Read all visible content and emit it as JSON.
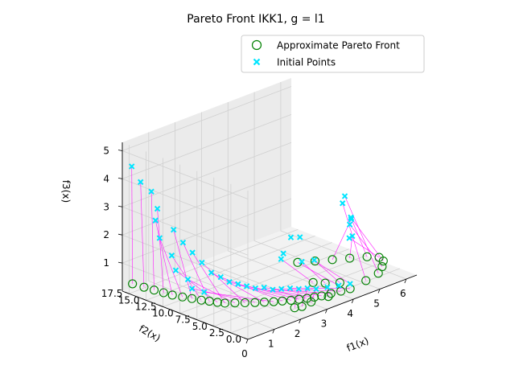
{
  "chart_data": {
    "type": "scatter3d",
    "title": "Pareto Front IKK1, g = l1",
    "xlabel": "f1(x)",
    "ylabel": "f2(x)",
    "zlabel": "f3(x)",
    "xlim": [
      0,
      6.4
    ],
    "ylim": [
      0,
      18.5
    ],
    "zlim": [
      0,
      5.3
    ],
    "xticks": [
      "0",
      "1",
      "2",
      "3",
      "4",
      "5",
      "6"
    ],
    "yticks": [
      "0.0",
      "2.5",
      "5.0",
      "7.5",
      "10.0",
      "12.5",
      "15.0",
      "17.5"
    ],
    "zticks": [
      "1",
      "2",
      "3",
      "4",
      "5"
    ],
    "legend": {
      "position": "top-right",
      "entries": [
        {
          "label": "Approximate Pareto Front",
          "marker": "circle",
          "color": "#008000"
        },
        {
          "label": "Initial Points",
          "marker": "x",
          "color": "#00e5ff"
        }
      ]
    },
    "connector_color": "#ff00ff",
    "grid": true,
    "series": [
      {
        "name": "Approximate Pareto Front",
        "points": [
          [
            0.0,
            17.0,
            0.4
          ],
          [
            0.05,
            15.5,
            0.4
          ],
          [
            0.1,
            14.2,
            0.4
          ],
          [
            0.15,
            13.0,
            0.4
          ],
          [
            0.2,
            11.9,
            0.4
          ],
          [
            0.3,
            10.8,
            0.4
          ],
          [
            0.4,
            9.8,
            0.4
          ],
          [
            0.5,
            8.8,
            0.4
          ],
          [
            0.6,
            8.0,
            0.4
          ],
          [
            0.7,
            7.2,
            0.4
          ],
          [
            0.8,
            6.5,
            0.4
          ],
          [
            1.0,
            5.8,
            0.4
          ],
          [
            1.2,
            5.1,
            0.4
          ],
          [
            1.4,
            4.4,
            0.4
          ],
          [
            1.6,
            3.8,
            0.4
          ],
          [
            1.8,
            3.2,
            0.4
          ],
          [
            2.0,
            2.7,
            0.4
          ],
          [
            2.2,
            2.2,
            0.4
          ],
          [
            2.4,
            1.8,
            0.4
          ],
          [
            2.6,
            1.4,
            0.4
          ],
          [
            2.8,
            1.1,
            0.4
          ],
          [
            3.0,
            0.8,
            0.4
          ],
          [
            3.3,
            0.6,
            0.4
          ],
          [
            3.6,
            0.3,
            0.4
          ],
          [
            3.9,
            0.1,
            0.4
          ],
          [
            1.9,
            0.5,
            0.4
          ],
          [
            2.1,
            0.2,
            0.4
          ],
          [
            2.5,
            0.4,
            0.4
          ],
          [
            3.1,
            0.2,
            0.4
          ],
          [
            4.2,
            9.0,
            0.4
          ],
          [
            4.6,
            8.0,
            0.4
          ],
          [
            5.0,
            7.0,
            0.4
          ],
          [
            5.4,
            6.0,
            0.4
          ],
          [
            5.8,
            5.0,
            0.4
          ],
          [
            6.0,
            4.0,
            0.4
          ],
          [
            5.9,
            3.0,
            0.4
          ],
          [
            5.6,
            2.0,
            0.4
          ],
          [
            5.2,
            1.0,
            0.4
          ],
          [
            4.6,
            0.5,
            0.4
          ],
          [
            4.0,
            2.0,
            0.4
          ],
          [
            3.7,
            3.0,
            0.4
          ],
          [
            3.5,
            4.0,
            0.4
          ]
        ]
      },
      {
        "name": "Initial Points",
        "points": [
          [
            0.1,
            17.5,
            4.5
          ],
          [
            0.05,
            16.0,
            4.1
          ],
          [
            0.2,
            15.0,
            3.8
          ],
          [
            0.3,
            14.5,
            3.2
          ],
          [
            0.1,
            14.0,
            2.9
          ],
          [
            0.0,
            13.0,
            2.4
          ],
          [
            0.4,
            12.5,
            2.6
          ],
          [
            0.2,
            12.0,
            1.8
          ],
          [
            0.5,
            11.5,
            2.2
          ],
          [
            0.1,
            11.0,
            1.4
          ],
          [
            0.6,
            10.5,
            1.9
          ],
          [
            0.3,
            10.0,
            1.1
          ],
          [
            0.7,
            9.5,
            1.6
          ],
          [
            0.2,
            9.0,
            0.9
          ],
          [
            0.8,
            8.5,
            1.3
          ],
          [
            0.4,
            8.0,
            0.8
          ],
          [
            0.9,
            7.5,
            1.2
          ],
          [
            1.1,
            7.0,
            1.0
          ],
          [
            1.3,
            6.5,
            0.9
          ],
          [
            1.5,
            6.0,
            0.8
          ],
          [
            1.7,
            5.5,
            0.7
          ],
          [
            1.9,
            5.0,
            0.7
          ],
          [
            2.1,
            4.5,
            0.6
          ],
          [
            2.3,
            4.0,
            0.6
          ],
          [
            2.5,
            3.5,
            0.6
          ],
          [
            2.7,
            3.0,
            0.55
          ],
          [
            2.9,
            2.5,
            0.55
          ],
          [
            3.1,
            2.0,
            0.5
          ],
          [
            3.4,
            1.5,
            0.5
          ],
          [
            3.7,
            1.0,
            0.5
          ],
          [
            4.0,
            0.5,
            0.5
          ],
          [
            4.3,
            1.5,
            2.6
          ],
          [
            4.6,
            2.5,
            1.8
          ],
          [
            4.8,
            3.5,
            2.3
          ],
          [
            5.0,
            4.5,
            1.4
          ],
          [
            5.2,
            5.0,
            2.0
          ],
          [
            5.4,
            6.0,
            1.6
          ],
          [
            5.6,
            7.5,
            2.4
          ],
          [
            5.9,
            9.0,
            1.9
          ],
          [
            3.8,
            5.0,
            1.0
          ],
          [
            3.2,
            4.5,
            1.2
          ],
          [
            2.8,
            6.0,
            1.3
          ],
          [
            3.4,
            8.0,
            1.1
          ],
          [
            4.2,
            10.0,
            1.2
          ],
          [
            4.8,
            11.0,
            0.9
          ]
        ]
      }
    ]
  }
}
